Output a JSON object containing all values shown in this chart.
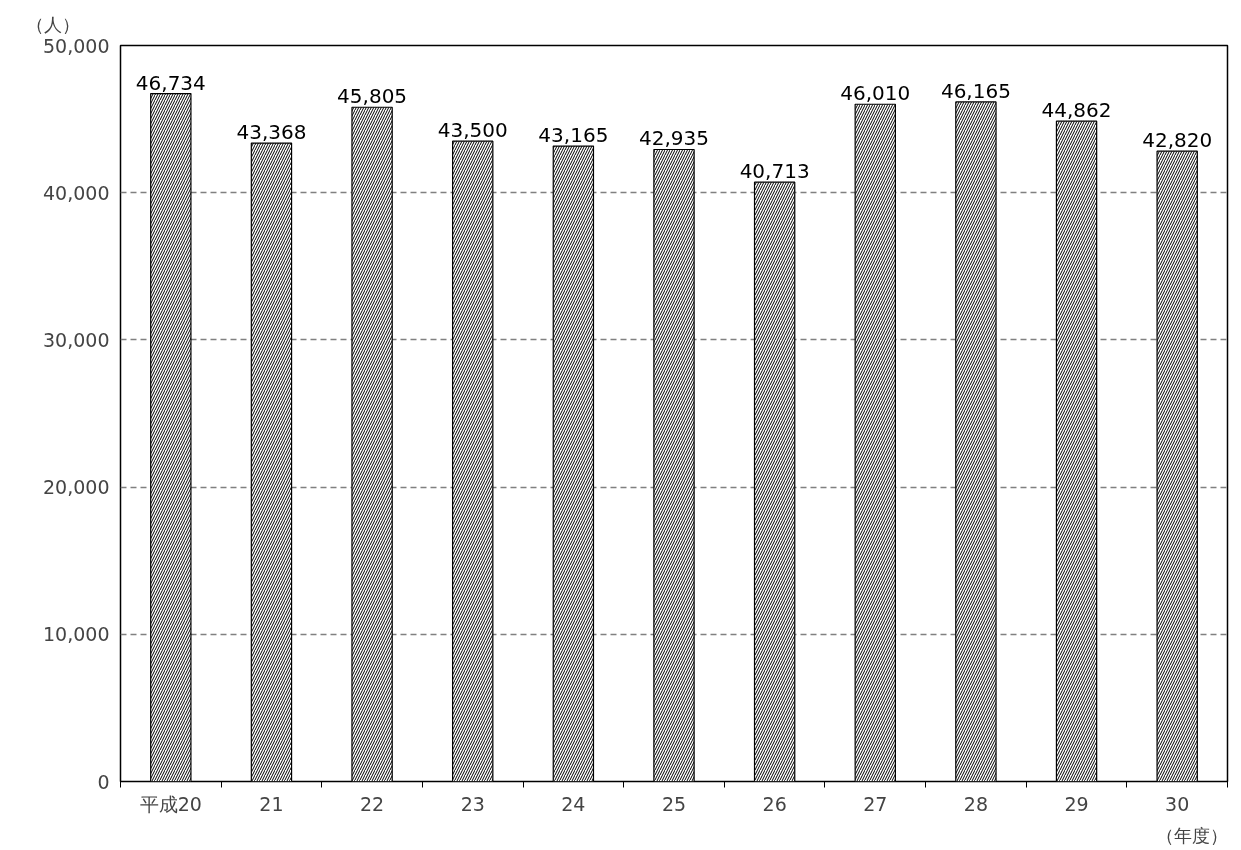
{
  "chart_data": {
    "type": "bar",
    "ylabel": "（人）",
    "xlabel": "（年度）",
    "categories": [
      "平成20",
      "21",
      "22",
      "23",
      "24",
      "25",
      "26",
      "27",
      "28",
      "29",
      "30"
    ],
    "values": [
      46734,
      43368,
      45805,
      43500,
      43165,
      42935,
      40713,
      46010,
      46165,
      44862,
      42820
    ],
    "value_labels": [
      "46,734",
      "43,368",
      "45,805",
      "43,500",
      "43,165",
      "42,935",
      "40,713",
      "46,010",
      "46,165",
      "44,862",
      "42,820"
    ],
    "color": "#000000",
    "ylim": [
      0,
      50000
    ],
    "yticks": [
      {
        "value": 0,
        "label": "0"
      },
      {
        "value": 10000,
        "label": "10,000"
      },
      {
        "value": 20000,
        "label": "20,000"
      },
      {
        "value": 30000,
        "label": "30,000"
      },
      {
        "value": 40000,
        "label": "40,000"
      },
      {
        "value": 50000,
        "label": "50,000"
      }
    ],
    "grid": "y"
  }
}
